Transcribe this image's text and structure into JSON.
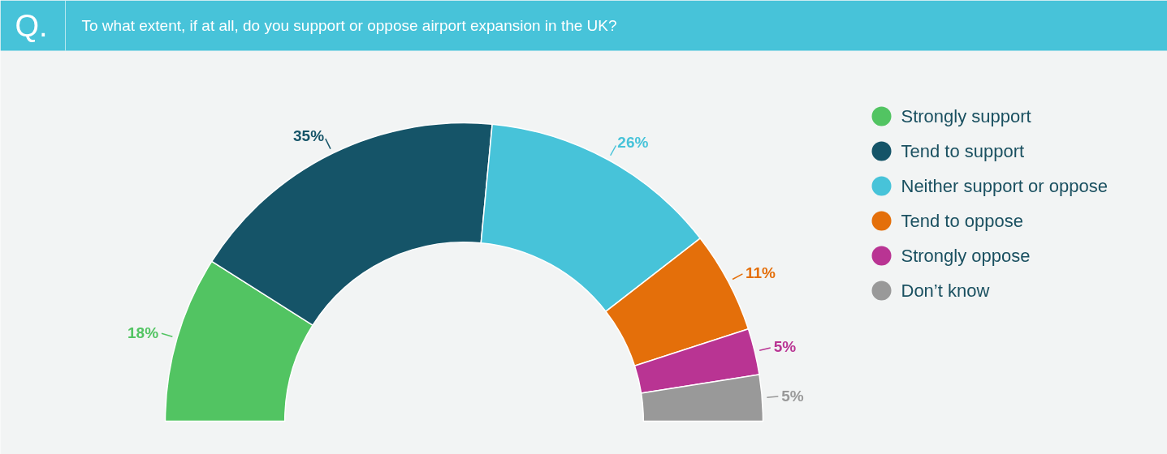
{
  "chart_data": {
    "type": "donut",
    "title": "To what extent, if at all, do you support or oppose airport expansion in the UK?",
    "annotations": [
      "Q."
    ],
    "categories": [
      "Strongly support",
      "Tend to support",
      "Neither support or oppose",
      "Tend to oppose",
      "Strongly oppose",
      "Don’t know"
    ],
    "values": [
      18,
      35,
      26,
      11,
      5,
      5
    ],
    "value_labels": [
      "18%",
      "35%",
      "26%",
      "11%",
      "5%",
      "5%"
    ],
    "colors": [
      "#52c462",
      "#155468",
      "#47c3d9",
      "#e46f0a",
      "#b93493",
      "#999999"
    ],
    "legend": "right"
  }
}
